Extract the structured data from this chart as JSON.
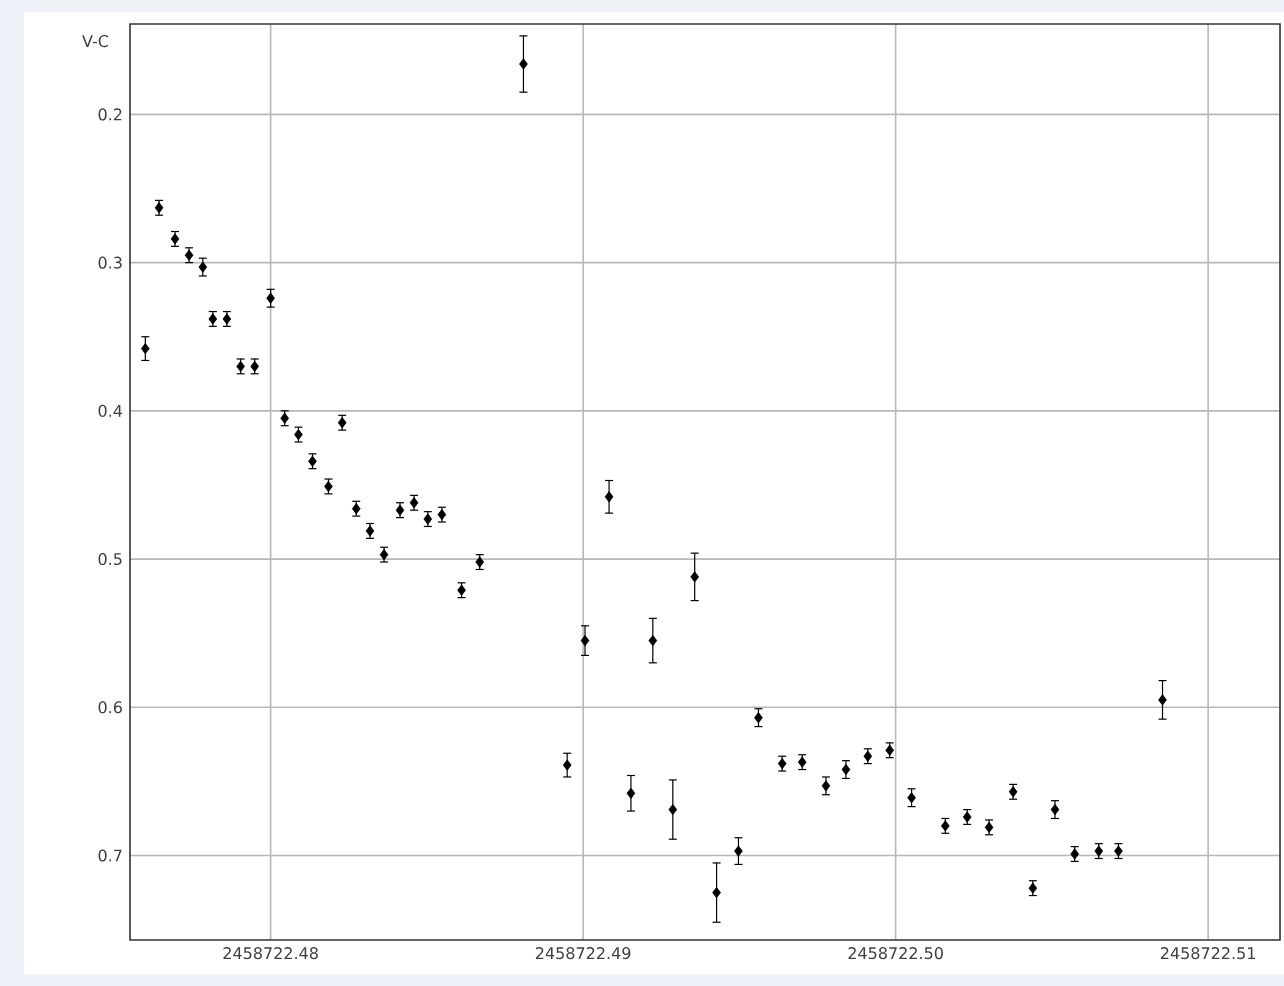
{
  "chart_data": {
    "type": "scatter",
    "ylabel": "V-C",
    "x": [
      2458722.47599,
      2458722.47643,
      2458722.47694,
      2458722.47739,
      2458722.47783,
      2458722.47815,
      2458722.4786,
      2458722.47904,
      2458722.47949,
      2458722.48,
      2458722.48045,
      2458722.48089,
      2458722.48134,
      2458722.48185,
      2458722.48229,
      2458722.48274,
      2458722.48318,
      2458722.48363,
      2458722.48414,
      2458722.48459,
      2458722.48503,
      2458722.48548,
      2458722.48611,
      2458722.48669,
      2458722.48809,
      2458722.48949,
      2458722.49006,
      2458722.49083,
      2458722.49153,
      2458722.49223,
      2458722.49287,
      2458722.49357,
      2458722.49427,
      2458722.49497,
      2458722.49561,
      2458722.49637,
      2458722.49701,
      2458722.49777,
      2458722.49841,
      2458722.49911,
      2458722.49981,
      2458722.50051,
      2458722.50159,
      2458722.50229,
      2458722.50299,
      2458722.50376,
      2458722.50439,
      2458722.5051,
      2458722.50573,
      2458722.5065,
      2458722.50713,
      2458722.50854
    ],
    "values": [
      0.358,
      0.263,
      0.284,
      0.295,
      0.303,
      0.338,
      0.338,
      0.37,
      0.37,
      0.324,
      0.405,
      0.416,
      0.434,
      0.451,
      0.408,
      0.466,
      0.481,
      0.497,
      0.467,
      0.462,
      0.473,
      0.47,
      0.521,
      0.502,
      0.166,
      0.639,
      0.555,
      0.458,
      0.658,
      0.555,
      0.669,
      0.512,
      0.725,
      0.697,
      0.607,
      0.638,
      0.637,
      0.653,
      0.642,
      0.633,
      0.629,
      0.661,
      0.68,
      0.674,
      0.681,
      0.657,
      0.722,
      0.669,
      0.699,
      0.697,
      0.697,
      0.595
    ],
    "errors": [
      0.008,
      0.005,
      0.005,
      0.005,
      0.006,
      0.005,
      0.005,
      0.005,
      0.005,
      0.006,
      0.005,
      0.005,
      0.005,
      0.005,
      0.005,
      0.005,
      0.005,
      0.005,
      0.005,
      0.005,
      0.005,
      0.005,
      0.005,
      0.005,
      0.019,
      0.008,
      0.01,
      0.011,
      0.012,
      0.015,
      0.02,
      0.016,
      0.02,
      0.009,
      0.006,
      0.005,
      0.005,
      0.006,
      0.006,
      0.005,
      0.005,
      0.006,
      0.005,
      0.005,
      0.005,
      0.005,
      0.005,
      0.006,
      0.005,
      0.005,
      0.005,
      0.013
    ],
    "color": "#000000",
    "marker": "diamond",
    "grid": true,
    "xlim": [
      2458722.4755,
      2458722.5123
    ],
    "xticks": [
      2458722.48,
      2458722.49,
      {
        "value": 2458722.5,
        "label": "2458722.50"
      },
      2458722.51
    ],
    "ylim": [
      0.757,
      0.139
    ],
    "yticks": [
      0.2,
      0.3,
      0.4,
      0.5,
      0.6,
      0.7
    ]
  }
}
